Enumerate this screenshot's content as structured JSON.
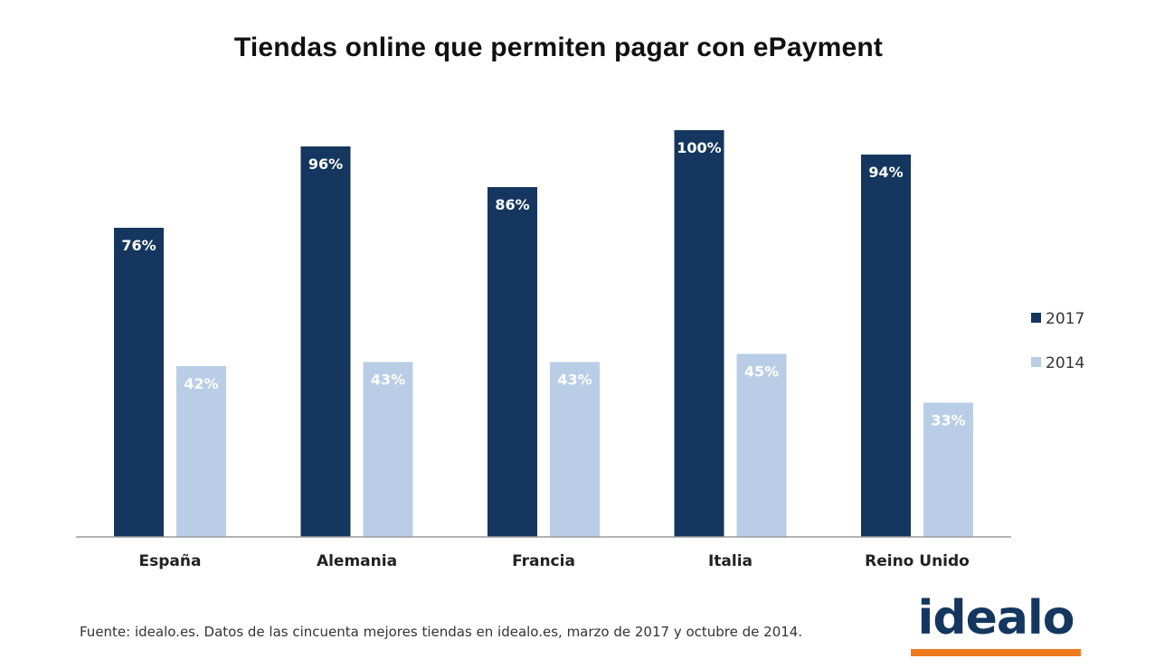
{
  "chart_data": {
    "type": "bar",
    "title": "Tiendas online que permiten pagar con ePayment",
    "categories": [
      "España",
      "Alemania",
      "Francia",
      "Italia",
      "Reino Unido"
    ],
    "series": [
      {
        "name": "2017",
        "values": [
          76,
          96,
          86,
          100,
          94
        ],
        "labels": [
          "76%",
          "96%",
          "86%",
          "100%",
          "94%"
        ],
        "color": "#15365e"
      },
      {
        "name": "2014",
        "values": [
          42,
          43,
          43,
          45,
          33
        ],
        "labels": [
          "42%",
          "43%",
          "43%",
          "45%",
          "33%"
        ],
        "color": "#b9cde6"
      }
    ],
    "ylim": [
      0,
      100
    ],
    "grid": false,
    "legend": "right"
  },
  "footer": {
    "source": "Fuente: idealo.es. Datos de las cincuenta mejores tiendas en idealo.es, marzo de 2017 y octubre de 2014."
  },
  "logo": {
    "text": "idealo",
    "text_color": "#14375f",
    "underline_color": "#f07a1f"
  }
}
